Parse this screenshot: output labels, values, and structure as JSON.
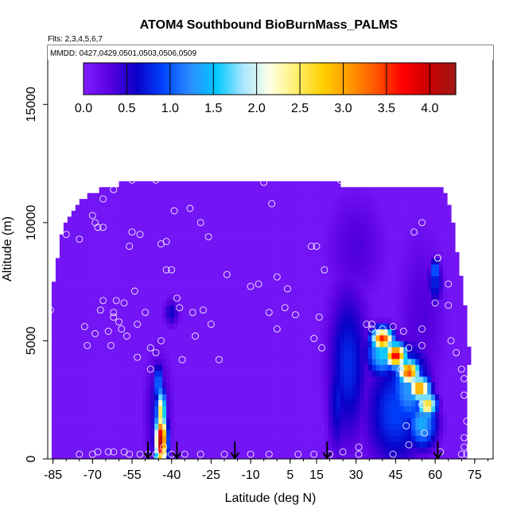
{
  "chart_data": {
    "type": "heatmap",
    "title": "ATOM4 Southbound BioBurnMass_PALMS",
    "subtitle_flights": "Flts: 2,3,4,5,6,7",
    "subtitle_dates": "MMDD: 0427,0429,0501,0503,0506,0509",
    "xlabel": "Latitude (deg N)",
    "ylabel": "Altitude (m)",
    "xlim": [
      -87,
      82
    ],
    "ylim": [
      0,
      17500
    ],
    "x_ticks": [
      -85,
      -70,
      -55,
      -40,
      -25,
      -10,
      5,
      15,
      30,
      45,
      60,
      75
    ],
    "y_ticks": [
      0,
      5000,
      10000,
      15000
    ],
    "colorbar": {
      "range": [
        0,
        4.3
      ],
      "ticks": [
        0.0,
        0.5,
        1.0,
        1.5,
        2.0,
        2.5,
        3.0,
        3.5,
        4.0
      ],
      "tick_labels": [
        "0.0",
        "0.5",
        "1.0",
        "1.5",
        "2.0",
        "2.5",
        "3.0",
        "3.5",
        "4.0"
      ],
      "colors": [
        "#7f1fff",
        "#5a00e0",
        "#0a00c8",
        "#0044ff",
        "#2b8cff",
        "#00c8ff",
        "#a8e6ff",
        "#ffffe6",
        "#fff06e",
        "#ffd000",
        "#ff9900",
        "#ff5500",
        "#ff0000",
        "#c80000",
        "#a01818"
      ]
    },
    "flight_markers_lat": [
      -49,
      -38,
      -16,
      19,
      61
    ],
    "field": {
      "background": 0.1,
      "boundary": [
        [
          -86,
          0
        ],
        [
          -86,
          6500
        ],
        [
          -82,
          9500
        ],
        [
          -75,
          11000
        ],
        [
          -65,
          11500
        ],
        [
          -52,
          11800
        ],
        [
          -40,
          11800
        ],
        [
          -20,
          11800
        ],
        [
          0,
          11800
        ],
        [
          10,
          11850
        ],
        [
          21,
          11850
        ],
        [
          25,
          11600
        ],
        [
          40,
          11400
        ],
        [
          55,
          11500
        ],
        [
          63,
          11500
        ],
        [
          66,
          10500
        ],
        [
          68,
          9000
        ],
        [
          70,
          7500
        ],
        [
          72,
          6000
        ],
        [
          73,
          4500
        ],
        [
          72,
          2000
        ],
        [
          72,
          0
        ]
      ],
      "features": [
        {
          "lat": -44,
          "alt": 800,
          "slat": 2.2,
          "salt": 1100,
          "value": 4.2
        },
        {
          "lat": -44,
          "alt": 2000,
          "slat": 1.8,
          "salt": 1000,
          "value": 2.6
        },
        {
          "lat": -45,
          "alt": 3200,
          "slat": 1.5,
          "salt": 900,
          "value": 1.3
        },
        {
          "lat": -45,
          "alt": 2000,
          "slat": 5,
          "salt": 2500,
          "value": 0.6
        },
        {
          "lat": -40,
          "alt": 6200,
          "slat": 3,
          "salt": 600,
          "value": 0.6
        },
        {
          "lat": 27,
          "alt": 4000,
          "slat": 8,
          "salt": 3500,
          "value": 0.8
        },
        {
          "lat": 23,
          "alt": 2500,
          "slat": 4,
          "salt": 2500,
          "value": 0.7
        },
        {
          "lat": 40,
          "alt": 5100,
          "slat": 4,
          "salt": 450,
          "value": 3.6
        },
        {
          "lat": 45,
          "alt": 4400,
          "slat": 4,
          "salt": 500,
          "value": 3.8
        },
        {
          "lat": 50,
          "alt": 3700,
          "slat": 4,
          "salt": 500,
          "value": 3.5
        },
        {
          "lat": 54,
          "alt": 3000,
          "slat": 4,
          "salt": 500,
          "value": 3.2
        },
        {
          "lat": 57,
          "alt": 2300,
          "slat": 3.5,
          "salt": 500,
          "value": 2.8
        },
        {
          "lat": 40,
          "alt": 4500,
          "slat": 6,
          "salt": 1000,
          "value": 1.6
        },
        {
          "lat": 50,
          "alt": 3000,
          "slat": 8,
          "salt": 1800,
          "value": 1.3
        },
        {
          "lat": 55,
          "alt": 1500,
          "slat": 6,
          "salt": 1100,
          "value": 1.4
        },
        {
          "lat": 45,
          "alt": 2000,
          "slat": 12,
          "salt": 2500,
          "value": 0.9
        },
        {
          "lat": 55,
          "alt": 6000,
          "slat": 10,
          "salt": 4000,
          "value": 0.35
        },
        {
          "lat": 60,
          "alt": 8000,
          "slat": 1.5,
          "salt": 500,
          "value": 1.3
        },
        {
          "lat": 60,
          "alt": 7500,
          "slat": 3,
          "salt": 1000,
          "value": 0.8
        },
        {
          "lat": 30,
          "alt": 9000,
          "slat": 12,
          "salt": 2500,
          "value": 0.35
        }
      ]
    },
    "observation_points": [
      [
        -86,
        6300
      ],
      [
        -84,
        9500
      ],
      [
        -80,
        9500
      ],
      [
        -75,
        9300
      ],
      [
        -73,
        5600
      ],
      [
        -72,
        4800
      ],
      [
        -69,
        5300
      ],
      [
        -67,
        6300
      ],
      [
        -66,
        6700
      ],
      [
        -64,
        5400
      ],
      [
        -63,
        4800
      ],
      [
        -62,
        6000
      ],
      [
        -62,
        6200
      ],
      [
        -61,
        6700
      ],
      [
        -60,
        5800
      ],
      [
        -59,
        5500
      ],
      [
        -58,
        6600
      ],
      [
        -57,
        5200
      ],
      [
        -56,
        9000
      ],
      [
        -55,
        9600
      ],
      [
        -54,
        7100
      ],
      [
        -53,
        4300
      ],
      [
        -53,
        5700
      ],
      [
        -52,
        9500
      ],
      [
        -50,
        6200
      ],
      [
        -48,
        4700
      ],
      [
        -48,
        3800
      ],
      [
        -46,
        4500
      ],
      [
        -44,
        5000
      ],
      [
        -44,
        9100
      ],
      [
        -42,
        8000
      ],
      [
        -42,
        9200
      ],
      [
        -40,
        8000
      ],
      [
        -39,
        10500
      ],
      [
        -38,
        6800
      ],
      [
        -37,
        6400
      ],
      [
        -36,
        4200
      ],
      [
        -33,
        10600
      ],
      [
        -32,
        6200
      ],
      [
        -31,
        5200
      ],
      [
        -29,
        10000
      ],
      [
        -28,
        6300
      ],
      [
        -26,
        9400
      ],
      [
        -25,
        5700
      ],
      [
        -22,
        4200
      ],
      [
        -19,
        7800
      ],
      [
        -10,
        7300
      ],
      [
        -7,
        7400
      ],
      [
        -5,
        11700
      ],
      [
        -3,
        6200
      ],
      [
        -2,
        10800
      ],
      [
        0,
        5500
      ],
      [
        0,
        7700
      ],
      [
        3,
        6400
      ],
      [
        4,
        7200
      ],
      [
        7,
        6100
      ],
      [
        13,
        9000
      ],
      [
        14,
        5100
      ],
      [
        15,
        9000
      ],
      [
        16,
        6000
      ],
      [
        17,
        4700
      ],
      [
        18,
        8000
      ],
      [
        -62,
        11400
      ],
      [
        -66,
        9800
      ],
      [
        -70,
        10300
      ],
      [
        -69,
        10000
      ],
      [
        -68,
        9800
      ],
      [
        -66,
        11000
      ],
      [
        -55,
        11800
      ],
      [
        -46,
        11800
      ],
      [
        -46,
        12100
      ],
      [
        24,
        11800
      ],
      [
        34,
        5700
      ],
      [
        36,
        5700
      ],
      [
        36,
        5500
      ],
      [
        40,
        5500
      ],
      [
        44,
        5600
      ],
      [
        48,
        5400
      ],
      [
        50,
        4700
      ],
      [
        52,
        9600
      ],
      [
        55,
        10000
      ],
      [
        55,
        5500
      ],
      [
        55,
        4800
      ],
      [
        60,
        6600
      ],
      [
        61,
        8500
      ],
      [
        61,
        8500
      ],
      [
        65,
        7400
      ],
      [
        65,
        6500
      ],
      [
        66,
        5000
      ],
      [
        68,
        4500
      ],
      [
        70,
        3800
      ],
      [
        71,
        3400
      ],
      [
        71,
        2700
      ],
      [
        72,
        1600
      ],
      [
        71,
        900
      ],
      [
        71,
        500
      ],
      [
        72,
        200
      ],
      [
        70,
        200
      ],
      [
        55,
        2300
      ],
      [
        56,
        1100
      ],
      [
        44,
        200
      ],
      [
        31,
        200
      ],
      [
        25,
        300
      ],
      [
        20,
        200
      ],
      [
        14,
        200
      ],
      [
        8,
        200
      ],
      [
        -3,
        200
      ],
      [
        -10,
        200
      ],
      [
        -20,
        200
      ],
      [
        -29,
        200
      ],
      [
        -35,
        200
      ],
      [
        -40,
        200
      ],
      [
        -43,
        200
      ],
      [
        -46,
        200
      ],
      [
        -49,
        200
      ],
      [
        -52,
        200
      ],
      [
        -56,
        200
      ],
      [
        -58,
        300
      ],
      [
        -62,
        300
      ],
      [
        -64,
        300
      ],
      [
        -68,
        300
      ],
      [
        -75,
        200
      ],
      [
        -70,
        200
      ],
      [
        47,
        3800
      ],
      [
        49,
        1400
      ],
      [
        50,
        600
      ],
      [
        62,
        300
      ],
      [
        31,
        500
      ],
      [
        -43,
        500
      ]
    ]
  }
}
